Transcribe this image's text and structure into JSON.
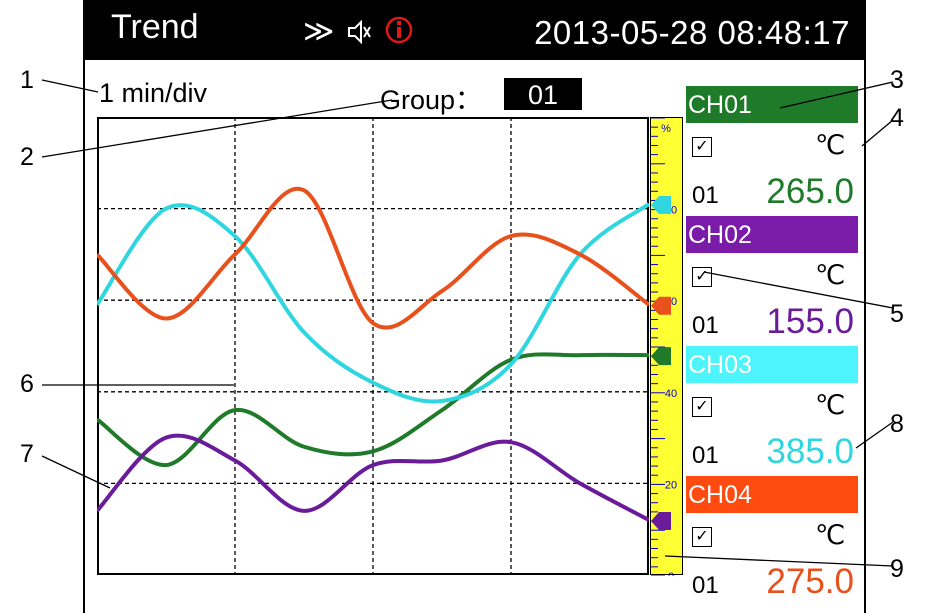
{
  "header": {
    "title": "Trend",
    "fast_forward_glyph": "≫",
    "datetime": "2013-05-28 08:48:17",
    "icons": [
      "fast-forward-icon",
      "speaker-mute-icon",
      "alarm-info-icon"
    ]
  },
  "toolbar": {
    "timebase": "1  min/div",
    "group_label": "Group：",
    "group_value": "01"
  },
  "scale": {
    "unit": "%",
    "ticks": [
      "80",
      "60",
      "40",
      "20",
      "0"
    ]
  },
  "channels": [
    {
      "name": "CH01",
      "unit": "℃",
      "id": "01",
      "value": "265.0",
      "color": "#1f7a2a",
      "header_color": "#1f7a2a"
    },
    {
      "name": "CH02",
      "unit": "℃",
      "id": "01",
      "value": "155.0",
      "color": "#6a1b9a",
      "header_color": "#7a1ca8"
    },
    {
      "name": "CH03",
      "unit": "℃",
      "id": "01",
      "value": "385.0",
      "color": "#2fd6e0",
      "header_color": "#4ef4fb"
    },
    {
      "name": "CH04",
      "unit": "℃",
      "id": "01",
      "value": "275.0",
      "color": "#e8501c",
      "header_color": "#ff4a10"
    }
  ],
  "callouts": [
    "1",
    "2",
    "3",
    "4",
    "5",
    "6",
    "7",
    "8",
    "9"
  ],
  "chart_data": {
    "type": "line",
    "x": [
      0,
      0.5,
      1,
      1.5,
      2,
      2.5,
      3,
      3.5,
      4
    ],
    "xlabel": "",
    "ylabel": "%",
    "ylim": [
      0,
      100
    ],
    "series": [
      {
        "name": "CH01",
        "color": "#1f7a2a",
        "values": [
          34,
          24,
          36,
          28,
          27,
          36,
          47,
          48,
          48
        ]
      },
      {
        "name": "CH02",
        "color": "#6a1b9a",
        "values": [
          14,
          30,
          25,
          14,
          24,
          25,
          29,
          20,
          12
        ]
      },
      {
        "name": "CH03",
        "color": "#2fd6e0",
        "values": [
          59,
          80,
          74,
          53,
          42,
          38,
          46,
          70,
          81
        ]
      },
      {
        "name": "CH04",
        "color": "#e8501c",
        "values": [
          70,
          56,
          70,
          84,
          55,
          62,
          74,
          70,
          59
        ]
      }
    ]
  }
}
